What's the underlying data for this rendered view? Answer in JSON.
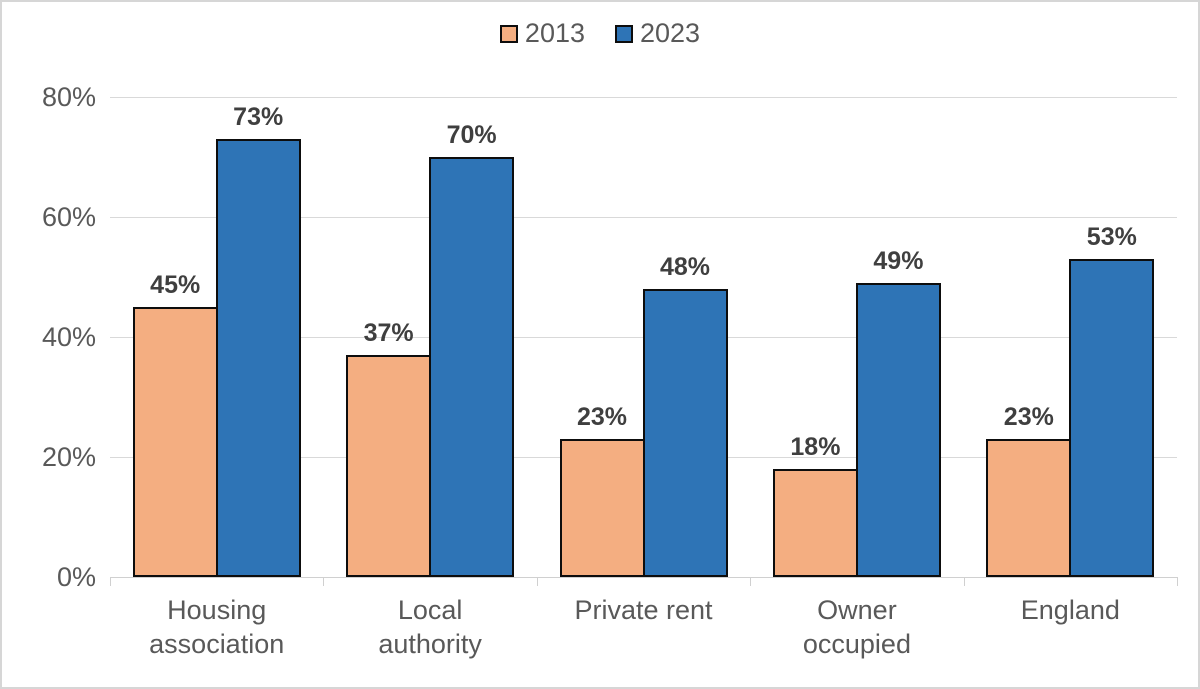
{
  "chart_data": {
    "type": "bar",
    "title": "",
    "categories": [
      "Housing association",
      "Local authority",
      "Private rent",
      "Owner occupied",
      "England"
    ],
    "series": [
      {
        "name": "2013",
        "color": "#F4AE81",
        "values": [
          45,
          37,
          23,
          18,
          23
        ]
      },
      {
        "name": "2023",
        "color": "#2E74B6",
        "values": [
          73,
          70,
          48,
          49,
          53
        ]
      }
    ],
    "value_suffix": "%",
    "xlabel": "",
    "ylabel": "",
    "ylim": [
      0,
      80
    ],
    "y_ticks": [
      "0%",
      "20%",
      "40%",
      "60%",
      "80%"
    ],
    "grid": true,
    "legend_position": "top",
    "grid_color": "#D9D9D9",
    "bar_border_color": "#0D0D0D",
    "label_color": "#3F3F3F",
    "axis_text_color": "#595959"
  }
}
